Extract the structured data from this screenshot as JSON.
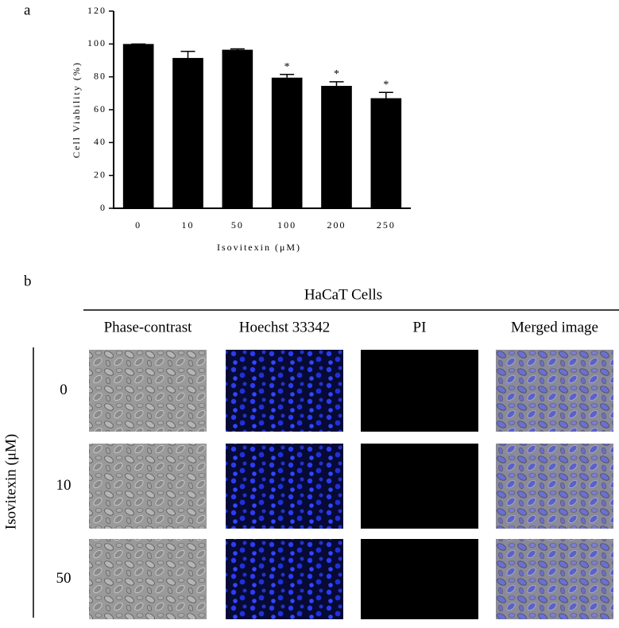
{
  "panel_labels": [
    "a",
    "b"
  ],
  "chart_data": {
    "type": "bar",
    "ylabel": "Cell Viability (%)",
    "xlabel": "Isovitexin (μM)",
    "categories": [
      "0",
      "10",
      "50",
      "100",
      "200",
      "250"
    ],
    "values": [
      100,
      91.5,
      96.5,
      79.5,
      74.5,
      67
    ],
    "errors": [
      0,
      4,
      0.5,
      2,
      2.5,
      3.5
    ],
    "annotations": [
      null,
      null,
      null,
      "*",
      "*",
      "*"
    ],
    "color": "#000000",
    "ylim": [
      0,
      120
    ],
    "yticks": [
      0,
      20,
      40,
      60,
      80,
      100,
      120
    ],
    "grid": false
  },
  "figure_b": {
    "title": "HaCaT Cells",
    "columns": [
      "Phase-contrast",
      "Hoechst 33342",
      "PI",
      "Merged image"
    ],
    "row_axis_label": "Isovitexin (μM)",
    "rows": [
      "0",
      "10",
      "50"
    ]
  }
}
